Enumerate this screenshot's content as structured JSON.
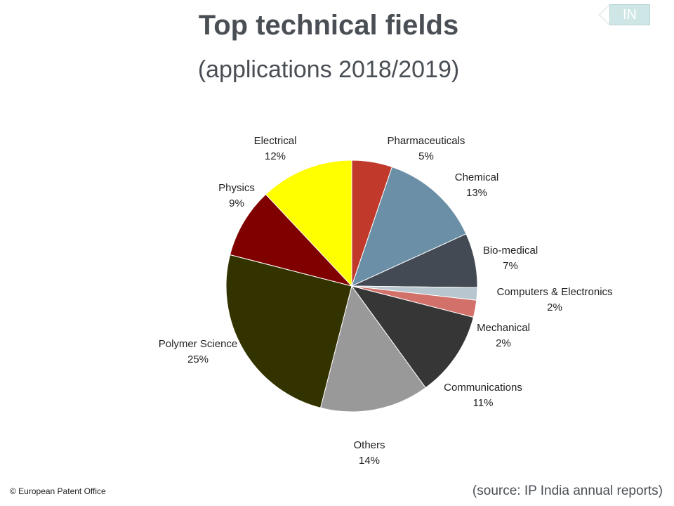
{
  "header": {
    "title": "Top technical fields",
    "subtitle": "(applications 2018/2019)",
    "lang_badge": "IN"
  },
  "footer": {
    "copyright": "© European Patent Office",
    "source": "(source: IP India annual reports)"
  },
  "chart_data": {
    "type": "pie",
    "title": "Top technical fields",
    "subtitle": "(applications 2018/2019)",
    "start_angle_deg": 0,
    "direction": "clockwise",
    "slices": [
      {
        "label": "Pharmaceuticals",
        "pct_label": "5%",
        "value": 5.2,
        "color": "#c0392b"
      },
      {
        "label": "Chemical",
        "pct_label": "13%",
        "value": 13.0,
        "color": "#6b8fa6"
      },
      {
        "label": "Bio-medical",
        "pct_label": "7%",
        "value": 7.0,
        "color": "#434a53"
      },
      {
        "label": "Computers & Electronics",
        "pct_label": "2%",
        "value": 1.6,
        "color": "#b8c7cf"
      },
      {
        "label": "Mechanical",
        "pct_label": "2%",
        "value": 2.2,
        "color": "#d2706a"
      },
      {
        "label": "Communications",
        "pct_label": "11%",
        "value": 11.0,
        "color": "#363636"
      },
      {
        "label": "Others",
        "pct_label": "14%",
        "value": 14.0,
        "color": "#999999"
      },
      {
        "label": "Polymer Science",
        "pct_label": "25%",
        "value": 25.0,
        "color": "#333300"
      },
      {
        "label": "Physics",
        "pct_label": "9%",
        "value": 9.0,
        "color": "#800000"
      },
      {
        "label": "Electrical",
        "pct_label": "12%",
        "value": 12.0,
        "color": "#ffff00"
      }
    ]
  }
}
